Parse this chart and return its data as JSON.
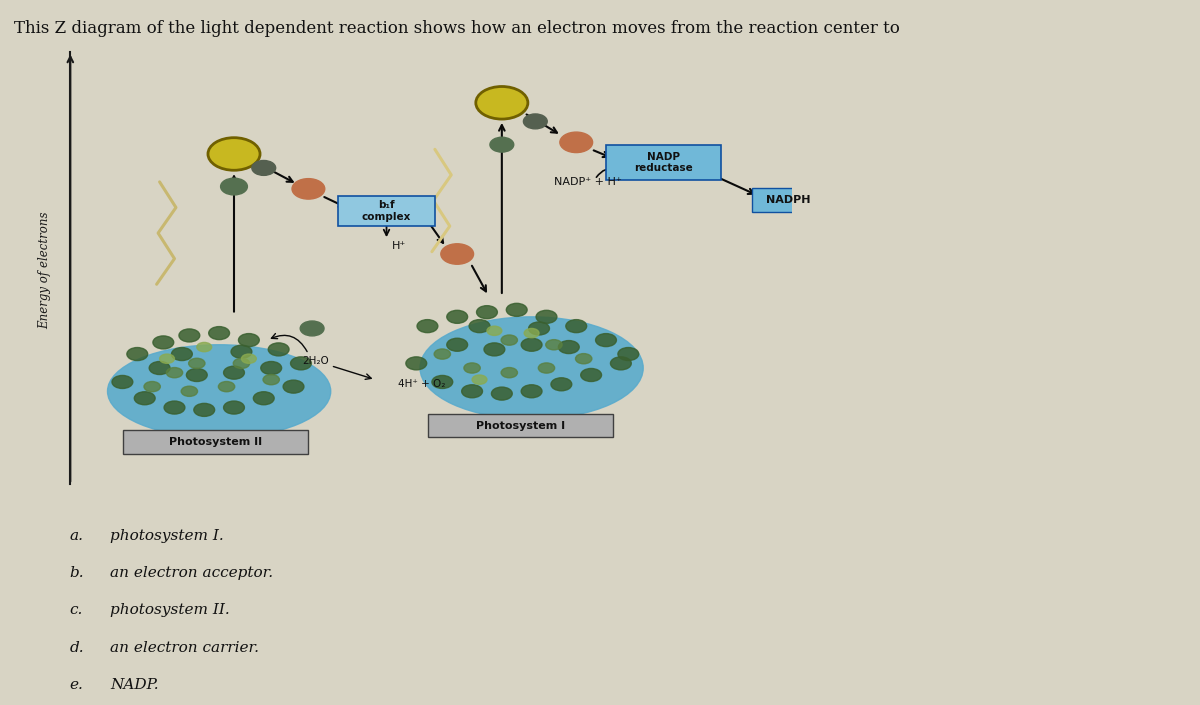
{
  "title": "This Z diagram of the light dependent reaction shows how an electron moves from the reaction center to",
  "title_fontsize": 12,
  "ylabel": "Energy of electrons",
  "bg_color": "#d8d4c4",
  "answer_choices": [
    [
      "a.",
      "photosystem I."
    ],
    [
      "b.",
      "an electron acceptor."
    ],
    [
      "c.",
      "photosystem II."
    ],
    [
      "d.",
      "an electron carrier."
    ],
    [
      "e.",
      "NADP."
    ]
  ],
  "ps2_label": "Photosystem II",
  "ps1_label": "Photosystem I",
  "nadp_reductase_label": "NADP\nreductase",
  "nadp_h_label": "NADP⁺ + H⁺",
  "nadph_label": "NADPH",
  "bf_complex_label": "b₁f\ncomplex",
  "h_label": "H⁺",
  "water_label": "2H₂O",
  "oxygen_label": "4H⁺ + O₂",
  "ps2_color": "#5aabcc",
  "ps1_color": "#5aabcc",
  "yellow_circle_color": "#c8b820",
  "yellow_circle_edge": "#706000",
  "orange_circle_color": "#c07048",
  "green_dark_color": "#3a6030",
  "green_medium_color": "#5a8040",
  "green_light_color": "#8aaa50",
  "nadp_box_color": "#70b8d8",
  "nadp_box_edge": "#1050a0",
  "ps_box_color": "#909090",
  "ps_box_edge": "#404040",
  "arrow_color": "#0a0a0a",
  "axis_color": "#1a1a1a",
  "zigzag_color": "#c8b870",
  "zigzag_color2": "#d8c880"
}
